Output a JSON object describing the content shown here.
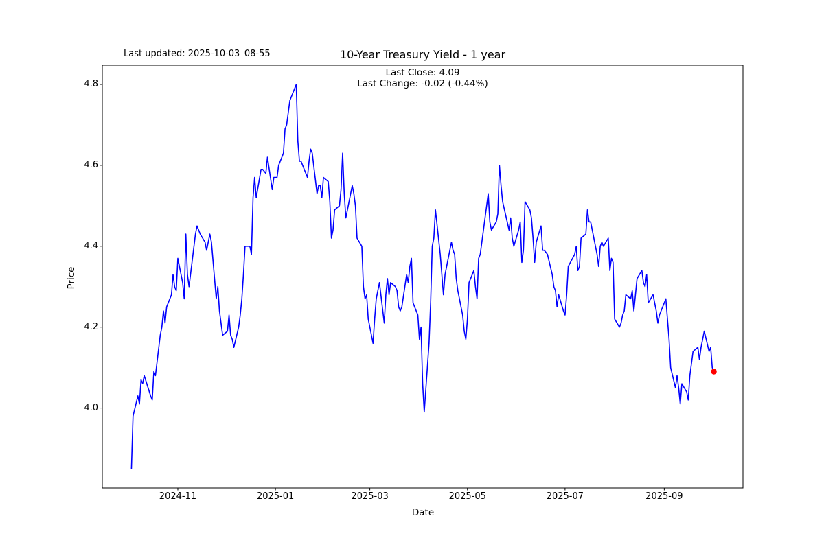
{
  "header": {
    "last_updated": "Last updated: 2025-10-03_08-55"
  },
  "colors": {
    "line": "#0000ff",
    "marker": "#ff0000",
    "text": "#000000",
    "background": "#ffffff",
    "axis": "#000000"
  },
  "chart_data": {
    "type": "line",
    "title": "10-Year Treasury Yield - 1 year",
    "xlabel": "Date",
    "ylabel": "Price",
    "annotations": {
      "last_close": "Last Close: 4.09",
      "last_change": "Last Change: -0.02 (-0.44%)"
    },
    "legend": "none",
    "grid": false,
    "x_start": "2024-10-03",
    "x_end": "2025-10-02",
    "ylim": [
      3.8025,
      4.8475
    ],
    "y_ticks": [
      {
        "value": 4.0,
        "label": "4.0"
      },
      {
        "value": 4.2,
        "label": "4.2"
      },
      {
        "value": 4.4,
        "label": "4.4"
      },
      {
        "value": 4.6,
        "label": "4.6"
      },
      {
        "value": 4.8,
        "label": "4.8"
      }
    ],
    "x_ticks": [
      {
        "date": "2024-11-01",
        "label": "2024-11"
      },
      {
        "date": "2025-01-01",
        "label": "2025-01"
      },
      {
        "date": "2025-03-01",
        "label": "2025-03"
      },
      {
        "date": "2025-05-01",
        "label": "2025-05"
      },
      {
        "date": "2025-07-01",
        "label": "2025-07"
      },
      {
        "date": "2025-09-01",
        "label": "2025-09"
      }
    ],
    "last_close_value": 4.09,
    "points": [
      [
        "2024-10-03",
        3.85
      ],
      [
        "2024-10-04",
        3.98
      ],
      [
        "2024-10-07",
        4.03
      ],
      [
        "2024-10-08",
        4.01
      ],
      [
        "2024-10-09",
        4.07
      ],
      [
        "2024-10-10",
        4.06
      ],
      [
        "2024-10-11",
        4.08
      ],
      [
        "2024-10-15",
        4.03
      ],
      [
        "2024-10-16",
        4.02
      ],
      [
        "2024-10-17",
        4.09
      ],
      [
        "2024-10-18",
        4.08
      ],
      [
        "2024-10-21",
        4.18
      ],
      [
        "2024-10-22",
        4.2
      ],
      [
        "2024-10-23",
        4.24
      ],
      [
        "2024-10-24",
        4.21
      ],
      [
        "2024-10-25",
        4.25
      ],
      [
        "2024-10-28",
        4.28
      ],
      [
        "2024-10-29",
        4.33
      ],
      [
        "2024-10-30",
        4.3
      ],
      [
        "2024-10-31",
        4.29
      ],
      [
        "2024-11-01",
        4.37
      ],
      [
        "2024-11-04",
        4.31
      ],
      [
        "2024-11-05",
        4.27
      ],
      [
        "2024-11-06",
        4.43
      ],
      [
        "2024-11-07",
        4.33
      ],
      [
        "2024-11-08",
        4.3
      ],
      [
        "2024-11-12",
        4.43
      ],
      [
        "2024-11-13",
        4.45
      ],
      [
        "2024-11-14",
        4.44
      ],
      [
        "2024-11-15",
        4.43
      ],
      [
        "2024-11-18",
        4.41
      ],
      [
        "2024-11-19",
        4.39
      ],
      [
        "2024-11-20",
        4.41
      ],
      [
        "2024-11-21",
        4.43
      ],
      [
        "2024-11-22",
        4.41
      ],
      [
        "2024-11-25",
        4.27
      ],
      [
        "2024-11-26",
        4.3
      ],
      [
        "2024-11-27",
        4.24
      ],
      [
        "2024-11-29",
        4.18
      ],
      [
        "2024-12-02",
        4.19
      ],
      [
        "2024-12-03",
        4.23
      ],
      [
        "2024-12-04",
        4.18
      ],
      [
        "2024-12-05",
        4.17
      ],
      [
        "2024-12-06",
        4.15
      ],
      [
        "2024-12-09",
        4.2
      ],
      [
        "2024-12-10",
        4.23
      ],
      [
        "2024-12-11",
        4.27
      ],
      [
        "2024-12-12",
        4.33
      ],
      [
        "2024-12-13",
        4.4
      ],
      [
        "2024-12-16",
        4.4
      ],
      [
        "2024-12-17",
        4.38
      ],
      [
        "2024-12-18",
        4.52
      ],
      [
        "2024-12-19",
        4.57
      ],
      [
        "2024-12-20",
        4.52
      ],
      [
        "2024-12-23",
        4.59
      ],
      [
        "2024-12-24",
        4.59
      ],
      [
        "2024-12-26",
        4.58
      ],
      [
        "2024-12-27",
        4.62
      ],
      [
        "2024-12-30",
        4.54
      ],
      [
        "2024-12-31",
        4.57
      ],
      [
        "2025-01-02",
        4.57
      ],
      [
        "2025-01-03",
        4.6
      ],
      [
        "2025-01-06",
        4.63
      ],
      [
        "2025-01-07",
        4.69
      ],
      [
        "2025-01-08",
        4.7
      ],
      [
        "2025-01-10",
        4.76
      ],
      [
        "2025-01-13",
        4.79
      ],
      [
        "2025-01-14",
        4.8
      ],
      [
        "2025-01-15",
        4.66
      ],
      [
        "2025-01-16",
        4.61
      ],
      [
        "2025-01-17",
        4.61
      ],
      [
        "2025-01-21",
        4.57
      ],
      [
        "2025-01-22",
        4.61
      ],
      [
        "2025-01-23",
        4.64
      ],
      [
        "2025-01-24",
        4.63
      ],
      [
        "2025-01-27",
        4.53
      ],
      [
        "2025-01-28",
        4.55
      ],
      [
        "2025-01-29",
        4.55
      ],
      [
        "2025-01-30",
        4.52
      ],
      [
        "2025-01-31",
        4.57
      ],
      [
        "2025-02-03",
        4.56
      ],
      [
        "2025-02-04",
        4.51
      ],
      [
        "2025-02-05",
        4.42
      ],
      [
        "2025-02-06",
        4.44
      ],
      [
        "2025-02-07",
        4.49
      ],
      [
        "2025-02-10",
        4.5
      ],
      [
        "2025-02-11",
        4.54
      ],
      [
        "2025-02-12",
        4.63
      ],
      [
        "2025-02-13",
        4.53
      ],
      [
        "2025-02-14",
        4.47
      ],
      [
        "2025-02-18",
        4.55
      ],
      [
        "2025-02-19",
        4.53
      ],
      [
        "2025-02-20",
        4.5
      ],
      [
        "2025-02-21",
        4.42
      ],
      [
        "2025-02-24",
        4.4
      ],
      [
        "2025-02-25",
        4.3
      ],
      [
        "2025-02-26",
        4.27
      ],
      [
        "2025-02-27",
        4.28
      ],
      [
        "2025-02-28",
        4.22
      ],
      [
        "2025-03-03",
        4.16
      ],
      [
        "2025-03-04",
        4.22
      ],
      [
        "2025-03-05",
        4.27
      ],
      [
        "2025-03-06",
        4.29
      ],
      [
        "2025-03-07",
        4.31
      ],
      [
        "2025-03-10",
        4.21
      ],
      [
        "2025-03-11",
        4.28
      ],
      [
        "2025-03-12",
        4.32
      ],
      [
        "2025-03-13",
        4.28
      ],
      [
        "2025-03-14",
        4.31
      ],
      [
        "2025-03-17",
        4.3
      ],
      [
        "2025-03-18",
        4.29
      ],
      [
        "2025-03-19",
        4.25
      ],
      [
        "2025-03-20",
        4.24
      ],
      [
        "2025-03-21",
        4.25
      ],
      [
        "2025-03-24",
        4.33
      ],
      [
        "2025-03-25",
        4.31
      ],
      [
        "2025-03-26",
        4.35
      ],
      [
        "2025-03-27",
        4.37
      ],
      [
        "2025-03-28",
        4.26
      ],
      [
        "2025-03-31",
        4.23
      ],
      [
        "2025-04-01",
        4.17
      ],
      [
        "2025-04-02",
        4.2
      ],
      [
        "2025-04-03",
        4.06
      ],
      [
        "2025-04-04",
        3.99
      ],
      [
        "2025-04-07",
        4.16
      ],
      [
        "2025-04-08",
        4.26
      ],
      [
        "2025-04-09",
        4.4
      ],
      [
        "2025-04-10",
        4.42
      ],
      [
        "2025-04-11",
        4.49
      ],
      [
        "2025-04-14",
        4.38
      ],
      [
        "2025-04-15",
        4.33
      ],
      [
        "2025-04-16",
        4.28
      ],
      [
        "2025-04-17",
        4.33
      ],
      [
        "2025-04-21",
        4.41
      ],
      [
        "2025-04-22",
        4.39
      ],
      [
        "2025-04-23",
        4.38
      ],
      [
        "2025-04-24",
        4.32
      ],
      [
        "2025-04-25",
        4.29
      ],
      [
        "2025-04-28",
        4.23
      ],
      [
        "2025-04-29",
        4.19
      ],
      [
        "2025-04-30",
        4.17
      ],
      [
        "2025-05-01",
        4.22
      ],
      [
        "2025-05-02",
        4.31
      ],
      [
        "2025-05-05",
        4.34
      ],
      [
        "2025-05-06",
        4.3
      ],
      [
        "2025-05-07",
        4.27
      ],
      [
        "2025-05-08",
        4.37
      ],
      [
        "2025-05-09",
        4.38
      ],
      [
        "2025-05-12",
        4.47
      ],
      [
        "2025-05-13",
        4.5
      ],
      [
        "2025-05-14",
        4.53
      ],
      [
        "2025-05-15",
        4.46
      ],
      [
        "2025-05-16",
        4.44
      ],
      [
        "2025-05-19",
        4.46
      ],
      [
        "2025-05-20",
        4.48
      ],
      [
        "2025-05-21",
        4.6
      ],
      [
        "2025-05-22",
        4.55
      ],
      [
        "2025-05-23",
        4.51
      ],
      [
        "2025-05-27",
        4.44
      ],
      [
        "2025-05-28",
        4.47
      ],
      [
        "2025-05-29",
        4.42
      ],
      [
        "2025-05-30",
        4.4
      ],
      [
        "2025-06-02",
        4.44
      ],
      [
        "2025-06-03",
        4.46
      ],
      [
        "2025-06-04",
        4.36
      ],
      [
        "2025-06-05",
        4.39
      ],
      [
        "2025-06-06",
        4.51
      ],
      [
        "2025-06-09",
        4.49
      ],
      [
        "2025-06-10",
        4.47
      ],
      [
        "2025-06-11",
        4.42
      ],
      [
        "2025-06-12",
        4.36
      ],
      [
        "2025-06-13",
        4.41
      ],
      [
        "2025-06-16",
        4.45
      ],
      [
        "2025-06-17",
        4.39
      ],
      [
        "2025-06-18",
        4.39
      ],
      [
        "2025-06-20",
        4.38
      ],
      [
        "2025-06-23",
        4.33
      ],
      [
        "2025-06-24",
        4.3
      ],
      [
        "2025-06-25",
        4.29
      ],
      [
        "2025-06-26",
        4.25
      ],
      [
        "2025-06-27",
        4.28
      ],
      [
        "2025-06-30",
        4.24
      ],
      [
        "2025-07-01",
        4.23
      ],
      [
        "2025-07-02",
        4.28
      ],
      [
        "2025-07-03",
        4.35
      ],
      [
        "2025-07-07",
        4.38
      ],
      [
        "2025-07-08",
        4.4
      ],
      [
        "2025-07-09",
        4.34
      ],
      [
        "2025-07-10",
        4.35
      ],
      [
        "2025-07-11",
        4.42
      ],
      [
        "2025-07-14",
        4.43
      ],
      [
        "2025-07-15",
        4.49
      ],
      [
        "2025-07-16",
        4.46
      ],
      [
        "2025-07-17",
        4.46
      ],
      [
        "2025-07-18",
        4.44
      ],
      [
        "2025-07-21",
        4.38
      ],
      [
        "2025-07-22",
        4.35
      ],
      [
        "2025-07-23",
        4.4
      ],
      [
        "2025-07-24",
        4.41
      ],
      [
        "2025-07-25",
        4.4
      ],
      [
        "2025-07-28",
        4.42
      ],
      [
        "2025-07-29",
        4.34
      ],
      [
        "2025-07-30",
        4.37
      ],
      [
        "2025-07-31",
        4.36
      ],
      [
        "2025-08-01",
        4.22
      ],
      [
        "2025-08-04",
        4.2
      ],
      [
        "2025-08-05",
        4.21
      ],
      [
        "2025-08-06",
        4.23
      ],
      [
        "2025-08-07",
        4.24
      ],
      [
        "2025-08-08",
        4.28
      ],
      [
        "2025-08-11",
        4.27
      ],
      [
        "2025-08-12",
        4.29
      ],
      [
        "2025-08-13",
        4.24
      ],
      [
        "2025-08-14",
        4.28
      ],
      [
        "2025-08-15",
        4.32
      ],
      [
        "2025-08-18",
        4.34
      ],
      [
        "2025-08-19",
        4.31
      ],
      [
        "2025-08-20",
        4.3
      ],
      [
        "2025-08-21",
        4.33
      ],
      [
        "2025-08-22",
        4.26
      ],
      [
        "2025-08-25",
        4.28
      ],
      [
        "2025-08-26",
        4.26
      ],
      [
        "2025-08-27",
        4.24
      ],
      [
        "2025-08-28",
        4.21
      ],
      [
        "2025-08-29",
        4.23
      ],
      [
        "2025-09-02",
        4.27
      ],
      [
        "2025-09-03",
        4.22
      ],
      [
        "2025-09-04",
        4.17
      ],
      [
        "2025-09-05",
        4.1
      ],
      [
        "2025-09-08",
        4.05
      ],
      [
        "2025-09-09",
        4.08
      ],
      [
        "2025-09-10",
        4.05
      ],
      [
        "2025-09-11",
        4.01
      ],
      [
        "2025-09-12",
        4.06
      ],
      [
        "2025-09-15",
        4.04
      ],
      [
        "2025-09-16",
        4.02
      ],
      [
        "2025-09-17",
        4.08
      ],
      [
        "2025-09-18",
        4.11
      ],
      [
        "2025-09-19",
        4.14
      ],
      [
        "2025-09-22",
        4.15
      ],
      [
        "2025-09-23",
        4.12
      ],
      [
        "2025-09-24",
        4.15
      ],
      [
        "2025-09-25",
        4.17
      ],
      [
        "2025-09-26",
        4.19
      ],
      [
        "2025-09-29",
        4.14
      ],
      [
        "2025-09-30",
        4.15
      ],
      [
        "2025-10-01",
        4.1
      ],
      [
        "2025-10-02",
        4.09
      ]
    ]
  }
}
